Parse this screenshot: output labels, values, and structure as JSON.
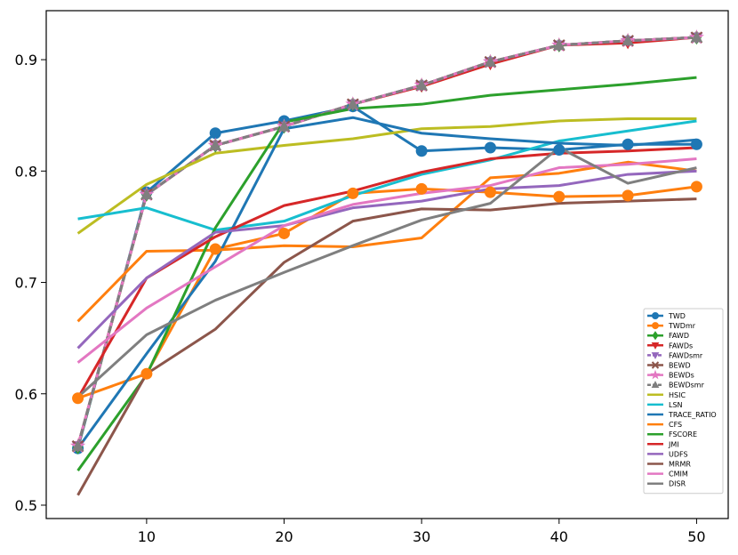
{
  "chart_data": {
    "type": "line",
    "title": "",
    "xlabel": "",
    "ylabel": "",
    "xlim": [
      2.7,
      52.3
    ],
    "ylim": [
      0.488,
      0.944
    ],
    "xticks": [
      10,
      20,
      30,
      40,
      50
    ],
    "yticks": [
      0.5,
      0.6,
      0.7,
      0.8,
      0.9
    ],
    "grid": false,
    "legend_position": "lower-right",
    "x": [
      5,
      10,
      15,
      20,
      25,
      30,
      35,
      40,
      45,
      50
    ],
    "series": [
      {
        "name": "TWD",
        "color": "#1f77b4",
        "marker": "circle",
        "dash": "solid",
        "values": [
          0.551,
          0.781,
          0.834,
          0.845,
          0.858,
          0.818,
          0.821,
          0.819,
          0.824,
          0.824
        ]
      },
      {
        "name": "TWDmr",
        "color": "#ff7f0e",
        "marker": "circle",
        "dash": "solid",
        "values": [
          0.596,
          0.618,
          0.73,
          0.744,
          0.78,
          0.784,
          0.781,
          0.777,
          0.778,
          0.786
        ]
      },
      {
        "name": "FAWD",
        "color": "#2ca02c",
        "marker": "diamond",
        "dash": "solid",
        "values": [
          0.552,
          0.779,
          0.823,
          0.84,
          0.86,
          0.877,
          0.898,
          0.913,
          0.917,
          0.92
        ]
      },
      {
        "name": "FAWDs",
        "color": "#d62728",
        "marker": "triangle-down",
        "dash": "solid",
        "values": [
          0.553,
          0.779,
          0.823,
          0.84,
          0.86,
          0.876,
          0.896,
          0.913,
          0.915,
          0.92
        ]
      },
      {
        "name": "FAWDsmr",
        "color": "#9467bd",
        "marker": "triangle-down",
        "dash": "dashed",
        "values": [
          0.553,
          0.779,
          0.823,
          0.84,
          0.86,
          0.877,
          0.898,
          0.913,
          0.917,
          0.92
        ]
      },
      {
        "name": "BEWD",
        "color": "#8c564b",
        "marker": "x",
        "dash": "solid",
        "values": [
          0.553,
          0.779,
          0.823,
          0.84,
          0.86,
          0.877,
          0.898,
          0.913,
          0.917,
          0.92
        ]
      },
      {
        "name": "BEWDs",
        "color": "#e377c2",
        "marker": "star",
        "dash": "solid",
        "values": [
          0.553,
          0.779,
          0.823,
          0.84,
          0.86,
          0.877,
          0.898,
          0.913,
          0.917,
          0.92
        ]
      },
      {
        "name": "BEWDsmr",
        "color": "#7f7f7f",
        "marker": "triangle-up",
        "dash": "dashed",
        "values": [
          0.553,
          0.779,
          0.823,
          0.84,
          0.86,
          0.877,
          0.898,
          0.913,
          0.917,
          0.92
        ]
      },
      {
        "name": "HSIC",
        "color": "#bcbd22",
        "marker": "none",
        "dash": "solid",
        "values": [
          0.744,
          0.788,
          0.816,
          0.823,
          0.829,
          0.838,
          0.84,
          0.845,
          0.847,
          0.847
        ]
      },
      {
        "name": "LSN",
        "color": "#17becf",
        "marker": "none",
        "dash": "solid",
        "values": [
          0.757,
          0.767,
          0.747,
          0.755,
          0.778,
          0.797,
          0.81,
          0.827,
          0.836,
          0.845
        ]
      },
      {
        "name": "TRACE_RATIO",
        "color": "#1f77b4",
        "marker": "none",
        "dash": "solid",
        "values": [
          0.551,
          0.636,
          0.719,
          0.838,
          0.848,
          0.834,
          0.829,
          0.825,
          0.823,
          0.828
        ]
      },
      {
        "name": "CFS",
        "color": "#ff7f0e",
        "marker": "none",
        "dash": "solid",
        "values": [
          0.665,
          0.728,
          0.729,
          0.733,
          0.732,
          0.74,
          0.794,
          0.798,
          0.808,
          0.8
        ]
      },
      {
        "name": "FSCORE",
        "color": "#2ca02c",
        "marker": "none",
        "dash": "solid",
        "values": [
          0.531,
          0.617,
          0.749,
          0.844,
          0.856,
          0.86,
          0.868,
          0.873,
          0.878,
          0.884
        ]
      },
      {
        "name": "JMI",
        "color": "#d62728",
        "marker": "none",
        "dash": "solid",
        "values": [
          0.596,
          0.704,
          0.741,
          0.769,
          0.782,
          0.799,
          0.811,
          0.816,
          0.818,
          0.821
        ]
      },
      {
        "name": "UDFS",
        "color": "#9467bd",
        "marker": "none",
        "dash": "solid",
        "values": [
          0.641,
          0.704,
          0.745,
          0.751,
          0.767,
          0.773,
          0.784,
          0.787,
          0.797,
          0.8
        ]
      },
      {
        "name": "MRMR",
        "color": "#8c564b",
        "marker": "none",
        "dash": "solid",
        "values": [
          0.509,
          0.618,
          0.658,
          0.718,
          0.755,
          0.766,
          0.765,
          0.771,
          0.773,
          0.775
        ]
      },
      {
        "name": "CMIM",
        "color": "#e377c2",
        "marker": "none",
        "dash": "solid",
        "values": [
          0.628,
          0.677,
          0.714,
          0.751,
          0.77,
          0.78,
          0.787,
          0.803,
          0.806,
          0.811
        ]
      },
      {
        "name": "DISR",
        "color": "#7f7f7f",
        "marker": "none",
        "dash": "solid",
        "values": [
          0.597,
          0.653,
          0.684,
          0.709,
          0.733,
          0.756,
          0.771,
          0.821,
          0.789,
          0.803
        ]
      }
    ]
  }
}
